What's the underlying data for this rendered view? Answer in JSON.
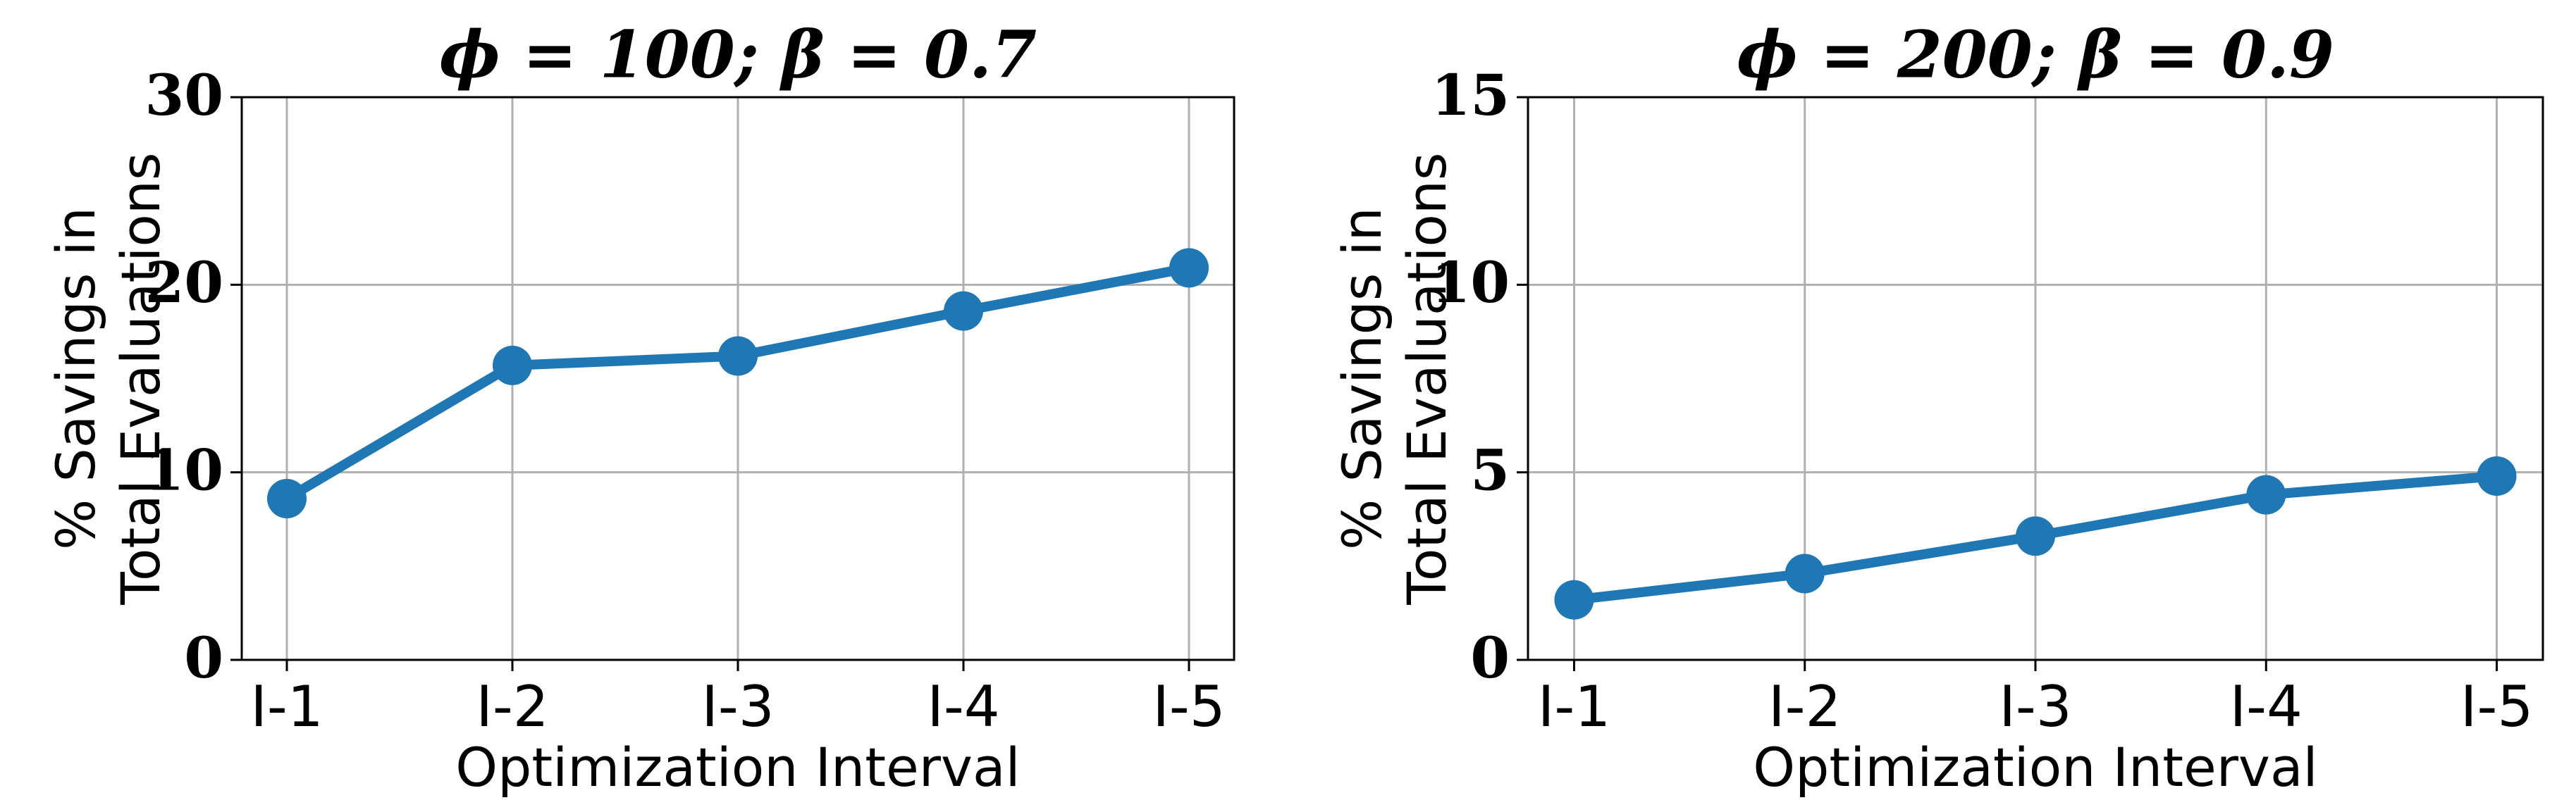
{
  "chart_data": [
    {
      "type": "line",
      "title": "ϕ = 100; β = 0.7",
      "xlabel": "Optimization Interval",
      "ylabel": [
        "% Savings in",
        "Total Evaluations"
      ],
      "categories": [
        "I-1",
        "I-2",
        "I-3",
        "I-4",
        "I-5"
      ],
      "series": [
        {
          "name": "Savings",
          "color": "#1f77b4",
          "values": [
            8.6,
            15.7,
            16.2,
            18.6,
            20.9
          ]
        }
      ],
      "ylim": [
        0,
        30
      ],
      "yticks": [
        0,
        10,
        20,
        30
      ],
      "grid": true
    },
    {
      "type": "line",
      "title": "ϕ = 200; β = 0.9",
      "xlabel": "Optimization Interval",
      "ylabel": [
        "% Savings in",
        "Total Evaluations"
      ],
      "categories": [
        "I-1",
        "I-2",
        "I-3",
        "I-4",
        "I-5"
      ],
      "series": [
        {
          "name": "Savings",
          "color": "#1f77b4",
          "values": [
            1.6,
            2.3,
            3.3,
            4.4,
            4.9
          ]
        }
      ],
      "ylim": [
        0,
        15
      ],
      "yticks": [
        0,
        5,
        10,
        15
      ],
      "grid": true
    }
  ]
}
